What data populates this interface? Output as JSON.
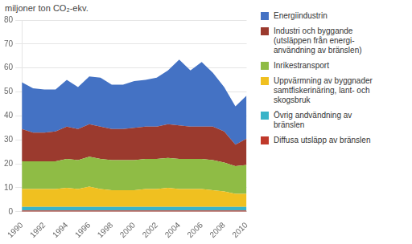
{
  "chart_data": {
    "type": "area",
    "stacked": true,
    "ylabel": "miljoner ton CO₂-ekv.",
    "x": [
      1990,
      1991,
      1992,
      1993,
      1994,
      1995,
      1996,
      1997,
      1998,
      1999,
      2000,
      2001,
      2002,
      2003,
      2004,
      2005,
      2006,
      2007,
      2008,
      2009,
      2010
    ],
    "xlim": [
      1990,
      2010
    ],
    "xticks": [
      1990,
      1992,
      1994,
      1996,
      1998,
      2000,
      2002,
      2004,
      2006,
      2008,
      2010
    ],
    "ylim": [
      0,
      80
    ],
    "yticks": [
      0,
      10,
      20,
      30,
      40,
      50,
      60,
      70,
      80
    ],
    "grid": "y",
    "legend": "right",
    "series": [
      {
        "name": "Diffusa utsläpp av bränslen",
        "color": "#c0392b",
        "values": [
          0.5,
          0.5,
          0.5,
          0.5,
          0.5,
          0.5,
          0.5,
          0.5,
          0.5,
          0.5,
          0.5,
          0.5,
          0.5,
          0.5,
          0.5,
          0.5,
          0.5,
          0.5,
          0.5,
          0.5,
          0.5
        ]
      },
      {
        "name": "Övrig andvändning av\nbränslen",
        "color": "#3ab4c8",
        "values": [
          1.5,
          1.5,
          1.5,
          1.5,
          1.5,
          1.5,
          1.5,
          1.5,
          1.5,
          1.5,
          1.5,
          1.5,
          1.5,
          1.5,
          1.5,
          1.5,
          1.5,
          1.5,
          1.5,
          1.5,
          1.5
        ]
      },
      {
        "name": "Uppvärmning av byggnader\nsamtfiskerinäring, lant- och\nskogsbruk",
        "color": "#f0c020",
        "values": [
          7.5,
          7.5,
          7.5,
          7.5,
          8.0,
          7.5,
          8.5,
          7.5,
          7.0,
          7.0,
          7.0,
          7.5,
          7.5,
          8.0,
          7.5,
          7.5,
          7.5,
          7.0,
          6.5,
          5.5,
          5.5
        ]
      },
      {
        "name": "Inrikestransport",
        "color": "#8fbc45",
        "values": [
          11.5,
          11.5,
          11.5,
          11.5,
          12.0,
          12.0,
          12.5,
          12.5,
          12.5,
          12.5,
          12.5,
          12.5,
          12.5,
          12.5,
          12.5,
          12.5,
          12.5,
          12.5,
          12.0,
          11.5,
          12.0
        ]
      },
      {
        "name": "Industri och byggande\n(utsläppen från energi-\nanvändning av bränslen)",
        "color": "#9b3a2e",
        "values": [
          13.5,
          12.0,
          12.0,
          12.5,
          13.5,
          13.0,
          13.5,
          13.5,
          13.0,
          13.0,
          13.5,
          13.5,
          13.5,
          14.0,
          14.0,
          13.5,
          13.5,
          14.0,
          13.0,
          9.0,
          11.0
        ]
      },
      {
        "name": "Energiindustrin",
        "color": "#4472c4",
        "values": [
          19.5,
          18.5,
          18.0,
          17.5,
          19.5,
          17.5,
          20.0,
          20.5,
          18.5,
          18.5,
          19.5,
          19.5,
          20.5,
          22.5,
          27.5,
          23.5,
          27.0,
          22.5,
          18.5,
          16.0,
          18.0
        ]
      }
    ]
  }
}
